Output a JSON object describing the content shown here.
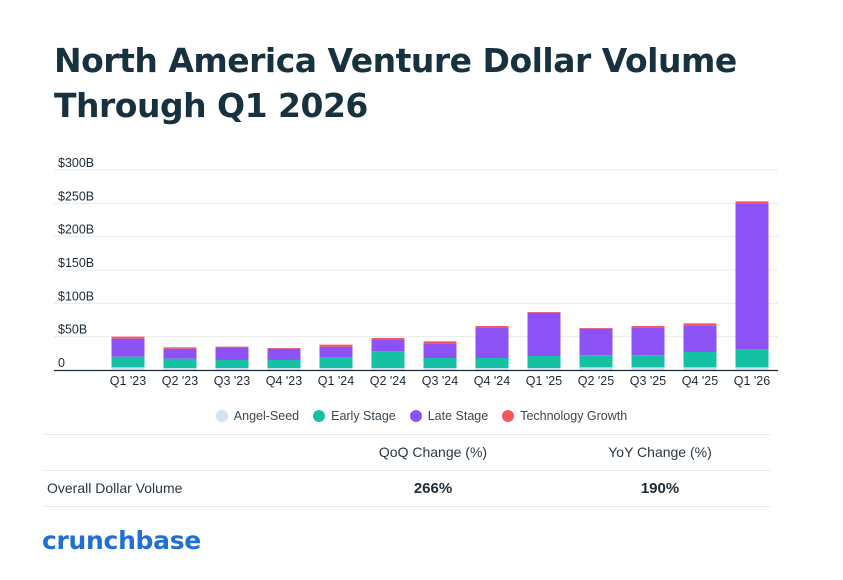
{
  "title": "North America Venture Dollar Volume Through Q1 2026",
  "chart_data": {
    "type": "bar",
    "stacked": true,
    "title": "North America Venture Dollar Volume Through Q1 2026",
    "xlabel": "",
    "ylabel": "",
    "ylim": [
      0,
      300
    ],
    "yticks": [
      0,
      50,
      100,
      150,
      200,
      250,
      300
    ],
    "ytick_labels": [
      "0",
      "$50B",
      "$100B",
      "$150B",
      "$200B",
      "$250B",
      "$300B"
    ],
    "grid": true,
    "legend_position": "bottom",
    "categories": [
      "Q1 '23",
      "Q2 '23",
      "Q3 '23",
      "Q4 '23",
      "Q1 '24",
      "Q2 '24",
      "Q3 '24",
      "Q4 '24",
      "Q1 '25",
      "Q2 '25",
      "Q3 '25",
      "Q4 '25",
      "Q1 '26"
    ],
    "series": [
      {
        "name": "Angel-Seed",
        "color": "#cfe0f7",
        "values": [
          4,
          3,
          3,
          3,
          3,
          3,
          3,
          3,
          3,
          4,
          4,
          4,
          4
        ]
      },
      {
        "name": "Early Stage",
        "color": "#16c1a3",
        "values": [
          16,
          14,
          12,
          12,
          16,
          25,
          15,
          15,
          18,
          18,
          18,
          23,
          27
        ]
      },
      {
        "name": "Late Stage",
        "color": "#8c52f5",
        "values": [
          27,
          15,
          18,
          17,
          16,
          17,
          22,
          45,
          65,
          40,
          42,
          40,
          218
        ]
      },
      {
        "name": "Technology Growth",
        "color": "#f5575d",
        "values": [
          3,
          2,
          2,
          1,
          3,
          3,
          3,
          3,
          1,
          1,
          2,
          3,
          4
        ]
      }
    ]
  },
  "summary": {
    "headers": [
      "",
      "QoQ Change (%)",
      "YoY Change (%)"
    ],
    "rows": [
      {
        "label": "Overall Dollar Volume",
        "qoq": "266%",
        "yoy": "190%"
      }
    ]
  },
  "logo": "crunchbase"
}
